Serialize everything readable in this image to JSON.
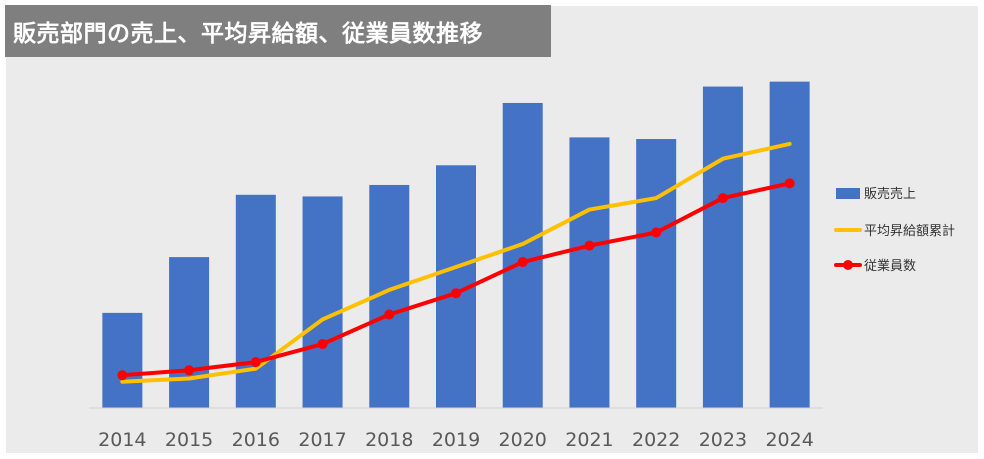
{
  "colors": {
    "bar": "#4472c4",
    "salary_line": "#ffc000",
    "employee_line": "#ff0000",
    "title_bg": "#7f7f7f",
    "panel_bg": "#ebebeb"
  },
  "chart_data": {
    "type": "bar",
    "title": "販売部門の売上、平均昇給額、従業員数推移",
    "categories": [
      "2014",
      "2015",
      "2016",
      "2017",
      "2018",
      "2019",
      "2020",
      "2021",
      "2022",
      "2023",
      "2024"
    ],
    "axes": {
      "y_range": [
        0,
        100
      ],
      "grid": false,
      "legend": "right"
    },
    "series": [
      {
        "name": "販売売上",
        "kind": "bar",
        "values": [
          29,
          46,
          65,
          64.5,
          68,
          74,
          93,
          82.5,
          82,
          98,
          99.5
        ]
      },
      {
        "name": "平均昇給額累計",
        "kind": "line",
        "values": [
          8,
          9,
          12,
          27,
          36,
          43,
          50,
          60.5,
          64,
          76,
          80.5
        ]
      },
      {
        "name": "従業員数",
        "kind": "line",
        "values": [
          10,
          11.5,
          14,
          19.5,
          28.5,
          35,
          44.5,
          49.5,
          53.5,
          64,
          68.5
        ]
      }
    ]
  }
}
